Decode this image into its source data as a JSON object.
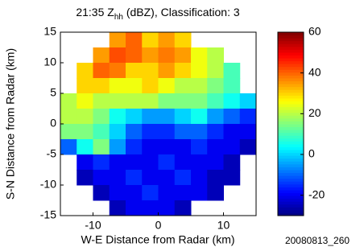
{
  "chart_data": {
    "type": "heatmap",
    "title": {
      "main": "21:35  Z",
      "subscript": "hh",
      "rest": " (dBZ), Classification: 3"
    },
    "x_label": "W-E Distance from Radar (km)",
    "y_label": "S-N Distance from Radar (km)",
    "footer": "20080813_260",
    "xlim": [
      -15,
      15
    ],
    "ylim": [
      -15,
      15
    ],
    "xticks": [
      -10,
      0,
      10
    ],
    "yticks": [
      -15,
      -10,
      -5,
      0,
      5,
      10,
      15
    ],
    "clim": [
      -30,
      60
    ],
    "cticks": [
      -20,
      0,
      20,
      40,
      60
    ],
    "colormap": "jet",
    "x": [
      -13.75,
      -11.25,
      -8.75,
      -6.25,
      -3.75,
      -1.25,
      1.25,
      3.75,
      6.25,
      8.75,
      11.25,
      13.75
    ],
    "y": [
      13.75,
      11.25,
      8.75,
      6.25,
      3.75,
      1.25,
      -1.25,
      -3.75,
      -6.25,
      -8.75,
      -11.25,
      -13.75
    ],
    "z": [
      [
        null,
        null,
        null,
        35,
        40,
        30,
        35,
        30,
        null,
        null,
        null,
        null
      ],
      [
        null,
        null,
        35,
        42,
        40,
        35,
        38,
        35,
        25,
        20,
        null,
        null
      ],
      [
        null,
        30,
        40,
        38,
        30,
        30,
        35,
        30,
        25,
        20,
        10,
        null
      ],
      [
        null,
        30,
        30,
        25,
        25,
        30,
        25,
        20,
        20,
        15,
        10,
        null
      ],
      [
        20,
        25,
        20,
        20,
        20,
        20,
        15,
        15,
        15,
        10,
        5,
        0
      ],
      [
        20,
        20,
        15,
        5,
        0,
        -5,
        -5,
        0,
        5,
        -5,
        -10,
        -15
      ],
      [
        15,
        15,
        10,
        0,
        -10,
        -15,
        -15,
        -10,
        -10,
        -15,
        -20,
        -20
      ],
      [
        -10,
        5,
        15,
        -5,
        -15,
        -20,
        -20,
        -20,
        -15,
        -20,
        -20,
        -25
      ],
      [
        null,
        -20,
        -15,
        -20,
        -20,
        -20,
        -15,
        -20,
        -20,
        -20,
        -25,
        null
      ],
      [
        null,
        -25,
        -20,
        -20,
        -15,
        -20,
        -20,
        -15,
        -20,
        -25,
        -25,
        null
      ],
      [
        null,
        null,
        -25,
        -20,
        -20,
        -15,
        -20,
        -20,
        -20,
        -25,
        null,
        null
      ],
      [
        null,
        null,
        null,
        -25,
        -20,
        -20,
        -20,
        -25,
        null,
        null,
        null,
        null
      ]
    ]
  }
}
